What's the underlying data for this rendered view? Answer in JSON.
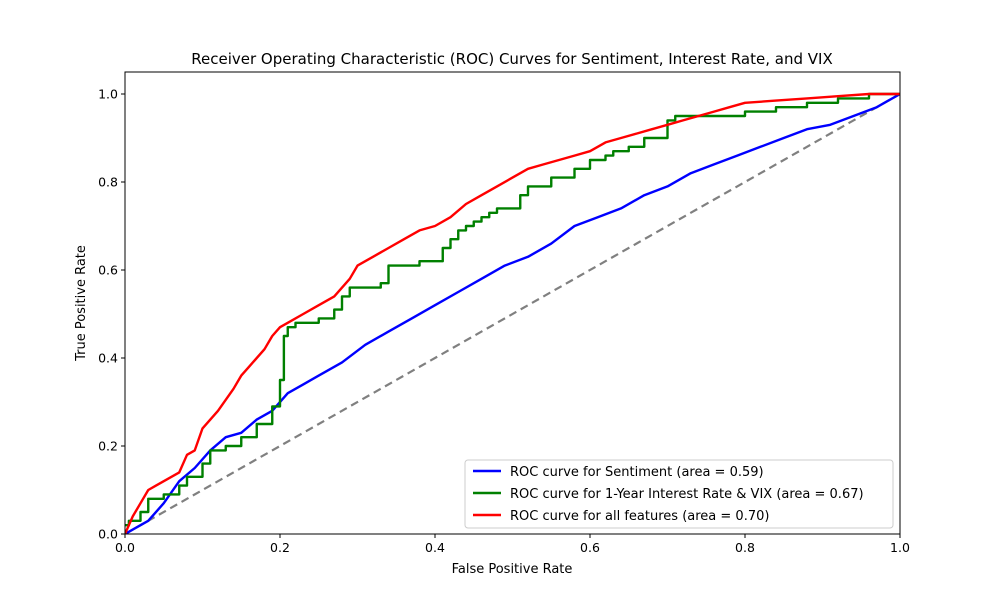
{
  "chart_data": {
    "type": "line",
    "title": "Receiver Operating Characteristic (ROC) Curves for Sentiment, Interest Rate, and VIX",
    "xlabel": "False Positive Rate",
    "ylabel": "True Positive Rate",
    "xlim": [
      0.0,
      1.0
    ],
    "ylim": [
      0.0,
      1.05
    ],
    "xticks": [
      "0.0",
      "0.2",
      "0.4",
      "0.6",
      "0.8",
      "1.0"
    ],
    "yticks": [
      "0.0",
      "0.2",
      "0.4",
      "0.6",
      "0.8",
      "1.0"
    ],
    "grid": false,
    "legend_position": "lower-right",
    "series": [
      {
        "name": "ROC curve for Sentiment (area = 0.59)",
        "color": "#0000ff",
        "step": false,
        "x": [
          0.0,
          0.01,
          0.03,
          0.05,
          0.07,
          0.09,
          0.11,
          0.13,
          0.15,
          0.17,
          0.19,
          0.21,
          0.23,
          0.25,
          0.28,
          0.31,
          0.34,
          0.37,
          0.4,
          0.43,
          0.46,
          0.49,
          0.52,
          0.55,
          0.58,
          0.61,
          0.64,
          0.67,
          0.7,
          0.73,
          0.76,
          0.79,
          0.82,
          0.85,
          0.88,
          0.91,
          0.94,
          0.97,
          1.0
        ],
        "y": [
          0.0,
          0.01,
          0.03,
          0.07,
          0.12,
          0.15,
          0.19,
          0.22,
          0.23,
          0.26,
          0.28,
          0.32,
          0.34,
          0.36,
          0.39,
          0.43,
          0.46,
          0.49,
          0.52,
          0.55,
          0.58,
          0.61,
          0.63,
          0.66,
          0.7,
          0.72,
          0.74,
          0.77,
          0.79,
          0.82,
          0.84,
          0.86,
          0.88,
          0.9,
          0.92,
          0.93,
          0.95,
          0.97,
          1.0
        ]
      },
      {
        "name": "ROC curve for 1-Year Interest Rate & VIX (area = 0.67)",
        "color": "#008000",
        "step": true,
        "x": [
          0.0,
          0.005,
          0.02,
          0.03,
          0.05,
          0.07,
          0.08,
          0.1,
          0.11,
          0.13,
          0.15,
          0.16,
          0.17,
          0.19,
          0.2,
          0.205,
          0.21,
          0.22,
          0.25,
          0.27,
          0.28,
          0.29,
          0.31,
          0.33,
          0.34,
          0.36,
          0.38,
          0.4,
          0.41,
          0.42,
          0.43,
          0.44,
          0.45,
          0.46,
          0.47,
          0.48,
          0.49,
          0.51,
          0.52,
          0.55,
          0.58,
          0.6,
          0.62,
          0.63,
          0.65,
          0.67,
          0.7,
          0.71,
          0.73,
          0.76,
          0.8,
          0.84,
          0.88,
          0.92,
          0.96,
          1.0
        ],
        "y": [
          0.02,
          0.03,
          0.05,
          0.08,
          0.09,
          0.11,
          0.13,
          0.16,
          0.19,
          0.2,
          0.22,
          0.22,
          0.25,
          0.29,
          0.35,
          0.45,
          0.47,
          0.48,
          0.49,
          0.51,
          0.54,
          0.56,
          0.56,
          0.57,
          0.61,
          0.61,
          0.62,
          0.62,
          0.65,
          0.67,
          0.69,
          0.7,
          0.71,
          0.72,
          0.73,
          0.74,
          0.74,
          0.77,
          0.79,
          0.81,
          0.83,
          0.85,
          0.86,
          0.87,
          0.88,
          0.9,
          0.94,
          0.95,
          0.95,
          0.95,
          0.96,
          0.97,
          0.98,
          0.99,
          1.0,
          1.0
        ]
      },
      {
        "name": "ROC curve for all features (area = 0.70)",
        "color": "#ff0000",
        "step": false,
        "x": [
          0.0,
          0.01,
          0.02,
          0.03,
          0.04,
          0.05,
          0.07,
          0.08,
          0.09,
          0.1,
          0.12,
          0.14,
          0.15,
          0.16,
          0.18,
          0.19,
          0.2,
          0.21,
          0.23,
          0.25,
          0.27,
          0.29,
          0.3,
          0.32,
          0.34,
          0.36,
          0.38,
          0.4,
          0.42,
          0.44,
          0.46,
          0.48,
          0.5,
          0.52,
          0.54,
          0.56,
          0.58,
          0.6,
          0.62,
          0.64,
          0.66,
          0.68,
          0.7,
          0.72,
          0.74,
          0.76,
          0.78,
          0.8,
          0.84,
          0.88,
          0.92,
          0.96,
          1.0
        ],
        "y": [
          0.0,
          0.04,
          0.07,
          0.1,
          0.11,
          0.12,
          0.14,
          0.18,
          0.19,
          0.24,
          0.28,
          0.33,
          0.36,
          0.38,
          0.42,
          0.45,
          0.47,
          0.48,
          0.5,
          0.52,
          0.54,
          0.58,
          0.61,
          0.63,
          0.65,
          0.67,
          0.69,
          0.7,
          0.72,
          0.75,
          0.77,
          0.79,
          0.81,
          0.83,
          0.84,
          0.85,
          0.86,
          0.87,
          0.89,
          0.9,
          0.91,
          0.92,
          0.93,
          0.94,
          0.95,
          0.96,
          0.97,
          0.98,
          0.985,
          0.99,
          0.995,
          1.0,
          1.0
        ]
      }
    ],
    "reference_line": {
      "color": "#808080",
      "style": "dashed",
      "x": [
        0.0,
        1.0
      ],
      "y": [
        0.0,
        1.0
      ]
    }
  }
}
